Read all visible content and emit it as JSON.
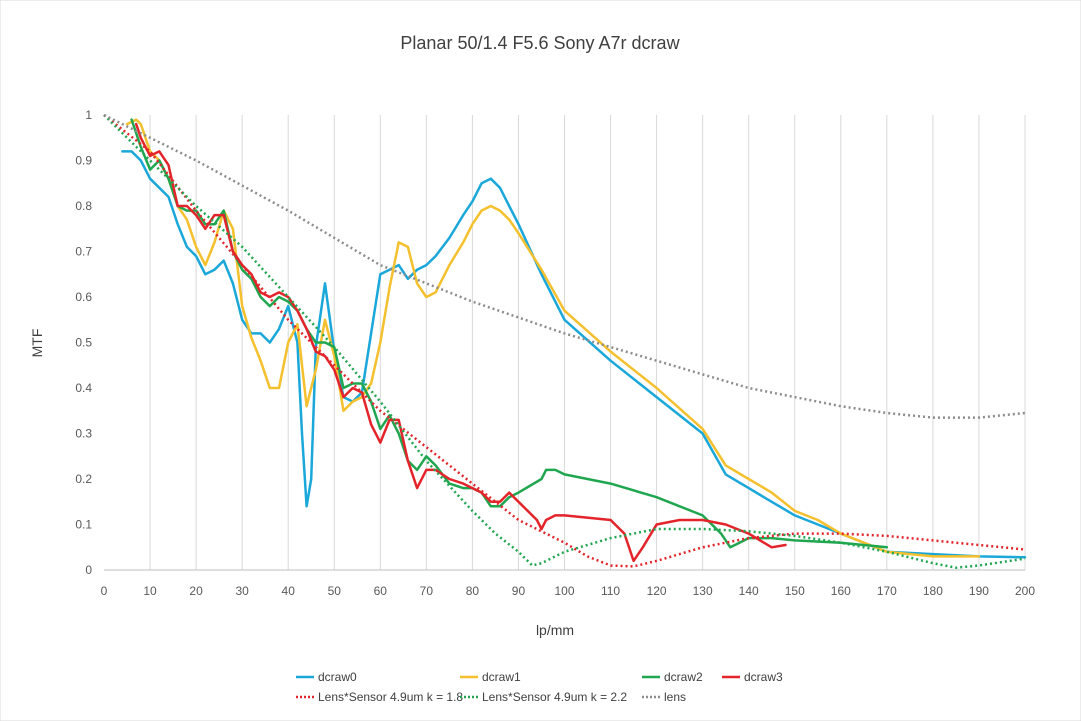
{
  "chart_data": {
    "type": "line",
    "title": "Planar 50/1.4 F5.6 Sony A7r dcraw",
    "xlabel": "lp/mm",
    "ylabel": "MTF",
    "xlim": [
      0,
      200
    ],
    "ylim": [
      0,
      1
    ],
    "xticks": [
      "0",
      "10",
      "20",
      "30",
      "40",
      "50",
      "60",
      "70",
      "80",
      "90",
      "100",
      "110",
      "120",
      "130",
      "140",
      "150",
      "160",
      "170",
      "180",
      "190",
      "200"
    ],
    "yticks": [
      "0",
      "0.1",
      "0.2",
      "0.3",
      "0.4",
      "0.5",
      "0.6",
      "0.7",
      "0.8",
      "0.9",
      "1"
    ],
    "grid": "vertical",
    "legend_position": "bottom",
    "series": [
      {
        "name": "dcraw0",
        "color": "#1aa7d9",
        "style": "solid",
        "x": [
          4,
          6,
          8,
          10,
          12,
          14,
          16,
          18,
          20,
          22,
          24,
          26,
          28,
          30,
          32,
          34,
          36,
          38,
          40,
          42,
          43,
          44,
          45,
          46,
          48,
          50,
          52,
          54,
          56,
          58,
          60,
          62,
          64,
          66,
          68,
          70,
          72,
          75,
          78,
          80,
          82,
          84,
          86,
          88,
          90,
          95,
          100,
          110,
          120,
          130,
          135,
          140,
          145,
          150,
          155,
          160,
          170,
          180,
          190,
          200
        ],
        "y": [
          0.92,
          0.92,
          0.9,
          0.86,
          0.84,
          0.82,
          0.76,
          0.71,
          0.69,
          0.65,
          0.66,
          0.68,
          0.63,
          0.55,
          0.52,
          0.52,
          0.5,
          0.53,
          0.58,
          0.5,
          0.3,
          0.14,
          0.2,
          0.49,
          0.63,
          0.48,
          0.38,
          0.37,
          0.39,
          0.52,
          0.65,
          0.66,
          0.67,
          0.64,
          0.66,
          0.67,
          0.69,
          0.73,
          0.78,
          0.81,
          0.85,
          0.86,
          0.84,
          0.8,
          0.76,
          0.65,
          0.55,
          0.46,
          0.38,
          0.3,
          0.21,
          0.18,
          0.15,
          0.12,
          0.1,
          0.08,
          0.04,
          0.035,
          0.03,
          0.028
        ]
      },
      {
        "name": "dcraw1",
        "color": "#f5c02d",
        "style": "solid",
        "x": [
          5,
          7,
          8,
          10,
          12,
          14,
          16,
          18,
          20,
          22,
          24,
          26,
          28,
          30,
          32,
          34,
          36,
          38,
          40,
          42,
          44,
          46,
          48,
          50,
          52,
          54,
          56,
          58,
          60,
          62,
          64,
          66,
          68,
          70,
          72,
          75,
          78,
          80,
          82,
          84,
          86,
          88,
          90,
          95,
          100,
          110,
          120,
          130,
          135,
          140,
          145,
          150,
          155,
          160,
          170,
          180,
          190
        ],
        "y": [
          0.98,
          0.99,
          0.98,
          0.92,
          0.9,
          0.86,
          0.8,
          0.77,
          0.71,
          0.67,
          0.72,
          0.79,
          0.75,
          0.58,
          0.51,
          0.46,
          0.4,
          0.4,
          0.5,
          0.54,
          0.36,
          0.44,
          0.55,
          0.47,
          0.35,
          0.37,
          0.38,
          0.41,
          0.5,
          0.62,
          0.72,
          0.71,
          0.63,
          0.6,
          0.61,
          0.67,
          0.72,
          0.76,
          0.79,
          0.8,
          0.79,
          0.77,
          0.74,
          0.66,
          0.57,
          0.48,
          0.4,
          0.31,
          0.23,
          0.2,
          0.17,
          0.13,
          0.11,
          0.08,
          0.04,
          0.03,
          0.03
        ]
      },
      {
        "name": "dcraw2",
        "color": "#21a650",
        "style": "solid",
        "x": [
          6,
          8,
          10,
          12,
          14,
          16,
          18,
          20,
          22,
          24,
          26,
          28,
          30,
          32,
          34,
          36,
          38,
          40,
          42,
          44,
          46,
          48,
          50,
          52,
          54,
          56,
          58,
          60,
          62,
          64,
          66,
          68,
          70,
          72,
          75,
          78,
          80,
          82,
          84,
          86,
          88,
          90,
          95,
          96,
          98,
          100,
          110,
          120,
          130,
          134,
          136,
          138,
          140,
          145,
          150,
          160,
          170
        ],
        "y": [
          0.99,
          0.93,
          0.88,
          0.9,
          0.86,
          0.8,
          0.79,
          0.79,
          0.76,
          0.76,
          0.79,
          0.7,
          0.66,
          0.64,
          0.6,
          0.58,
          0.6,
          0.59,
          0.57,
          0.53,
          0.5,
          0.5,
          0.49,
          0.4,
          0.41,
          0.41,
          0.37,
          0.31,
          0.34,
          0.3,
          0.24,
          0.22,
          0.25,
          0.23,
          0.19,
          0.18,
          0.18,
          0.17,
          0.14,
          0.14,
          0.16,
          0.17,
          0.2,
          0.22,
          0.22,
          0.21,
          0.19,
          0.16,
          0.12,
          0.08,
          0.05,
          0.06,
          0.07,
          0.07,
          0.065,
          0.06,
          0.05
        ]
      },
      {
        "name": "dcraw3",
        "color": "#e3242b",
        "style": "solid",
        "x": [
          7,
          8,
          10,
          12,
          14,
          16,
          18,
          20,
          22,
          24,
          26,
          28,
          30,
          32,
          34,
          36,
          38,
          40,
          42,
          44,
          46,
          48,
          50,
          52,
          54,
          56,
          58,
          60,
          62,
          64,
          66,
          68,
          70,
          72,
          75,
          78,
          80,
          82,
          84,
          86,
          88,
          90,
          94,
          95,
          96,
          98,
          100,
          110,
          113,
          115,
          117,
          120,
          125,
          130,
          135,
          140,
          145,
          148
        ],
        "y": [
          0.98,
          0.95,
          0.91,
          0.92,
          0.89,
          0.8,
          0.8,
          0.78,
          0.75,
          0.78,
          0.78,
          0.7,
          0.67,
          0.65,
          0.61,
          0.6,
          0.61,
          0.6,
          0.57,
          0.53,
          0.48,
          0.47,
          0.44,
          0.38,
          0.4,
          0.39,
          0.32,
          0.28,
          0.33,
          0.33,
          0.24,
          0.18,
          0.22,
          0.22,
          0.2,
          0.19,
          0.18,
          0.17,
          0.15,
          0.15,
          0.17,
          0.15,
          0.11,
          0.09,
          0.11,
          0.12,
          0.12,
          0.11,
          0.08,
          0.02,
          0.05,
          0.1,
          0.11,
          0.11,
          0.1,
          0.08,
          0.05,
          0.055
        ]
      },
      {
        "name": "Lens*Sensor 4.9um k = 1.8",
        "color": "#e3242b",
        "style": "dotted",
        "x": [
          0,
          10,
          20,
          30,
          40,
          50,
          60,
          70,
          80,
          90,
          100,
          105,
          110,
          115,
          120,
          130,
          140,
          150,
          160,
          170,
          180,
          190,
          200
        ],
        "y": [
          1,
          0.92,
          0.79,
          0.67,
          0.55,
          0.45,
          0.35,
          0.27,
          0.19,
          0.11,
          0.06,
          0.03,
          0.01,
          0.008,
          0.02,
          0.05,
          0.07,
          0.08,
          0.08,
          0.075,
          0.065,
          0.055,
          0.045
        ]
      },
      {
        "name": "Lens*Sensor 4.9um k = 2.2",
        "color": "#21a650",
        "style": "dotted",
        "x": [
          0,
          10,
          20,
          30,
          40,
          50,
          60,
          70,
          80,
          85,
          90,
          93,
          95,
          100,
          110,
          120,
          130,
          140,
          150,
          160,
          170,
          180,
          185,
          190,
          200
        ],
        "y": [
          1,
          0.9,
          0.8,
          0.71,
          0.6,
          0.49,
          0.37,
          0.24,
          0.13,
          0.08,
          0.04,
          0.01,
          0.015,
          0.04,
          0.07,
          0.09,
          0.09,
          0.085,
          0.075,
          0.06,
          0.04,
          0.015,
          0.005,
          0.01,
          0.025
        ]
      },
      {
        "name": "lens",
        "color": "#8c8c8c",
        "style": "dotted",
        "x": [
          0,
          20,
          40,
          60,
          80,
          100,
          120,
          140,
          160,
          170,
          180,
          190,
          200
        ],
        "y": [
          1,
          0.9,
          0.79,
          0.67,
          0.59,
          0.52,
          0.46,
          0.4,
          0.36,
          0.345,
          0.335,
          0.335,
          0.345
        ]
      }
    ]
  }
}
